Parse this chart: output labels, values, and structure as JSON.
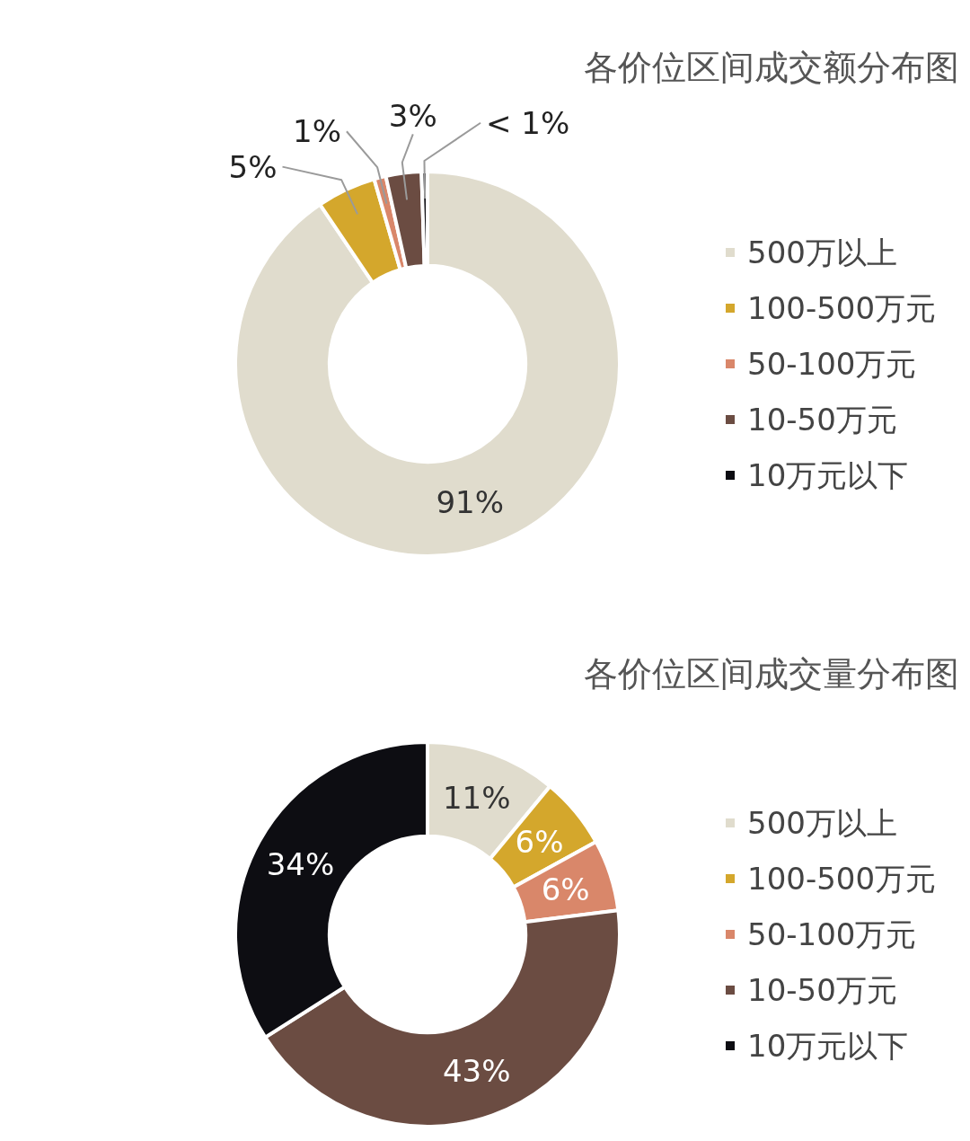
{
  "chart_data": [
    {
      "type": "donut",
      "title": "各价位区间成交额分布图",
      "categories": [
        "500万以上",
        "100-500万元",
        "50-100万元",
        "10-50万元",
        "10万元以下"
      ],
      "values": [
        91,
        5,
        1,
        3,
        0.5
      ],
      "colors": [
        "#e0dccd",
        "#d4a72c",
        "#d9876a",
        "#6b4c42",
        "#0d0d12"
      ],
      "value_labels": [
        "91%",
        "5%",
        "1%",
        "3%",
        "< 1%"
      ],
      "legend": "right"
    },
    {
      "type": "donut",
      "title": "各价位区间成交量分布图",
      "categories": [
        "500万以上",
        "100-500万元",
        "50-100万元",
        "10-50万元",
        "10万元以下"
      ],
      "values": [
        11,
        6,
        6,
        43,
        34
      ],
      "colors": [
        "#e0dccd",
        "#d4a72c",
        "#d9876a",
        "#6b4c42",
        "#0d0d12"
      ],
      "value_labels": [
        "11%",
        "6%",
        "6%",
        "43%",
        "34%"
      ],
      "legend": "right"
    }
  ]
}
